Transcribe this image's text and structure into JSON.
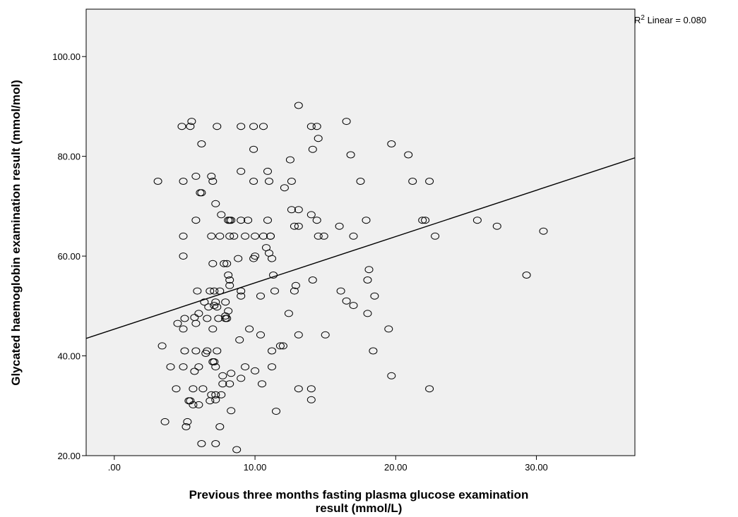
{
  "chart_data": {
    "type": "scatter",
    "xlabel_lines": [
      "Previous three months fasting plasma glucose examination",
      "result (mmol/L)"
    ],
    "ylabel": "Glycated haemoglobin examination result (mmol/mol)",
    "xlim": [
      -2.0,
      37.0
    ],
    "ylim": [
      20.0,
      109.5
    ],
    "x_ticks": [
      {
        "value": 0,
        "label": ".00"
      },
      {
        "value": 10,
        "label": "10.00"
      },
      {
        "value": 20,
        "label": "20.00"
      },
      {
        "value": 30,
        "label": "30.00"
      }
    ],
    "y_ticks": [
      {
        "value": 20,
        "label": "20.00"
      },
      {
        "value": 40,
        "label": "40.00"
      },
      {
        "value": 60,
        "label": "60.00"
      },
      {
        "value": 80,
        "label": "80.00"
      },
      {
        "value": 100,
        "label": "100.00"
      }
    ],
    "grid": false,
    "fit_line": {
      "x": [
        -2.0,
        37.0
      ],
      "y": [
        43.5,
        79.7
      ]
    },
    "annotation": {
      "base": "R",
      "sup": "2",
      "rest": " Linear = 0.080"
    },
    "colors": {
      "plot_bg": "#f0f0f0",
      "marker_stroke": "#000000",
      "line": "#000000"
    },
    "points": [
      [
        3.1,
        75
      ],
      [
        3.4,
        42
      ],
      [
        3.6,
        26.8
      ],
      [
        4.0,
        37.8
      ],
      [
        4.4,
        33.4
      ],
      [
        4.5,
        46.5
      ],
      [
        4.8,
        86
      ],
      [
        4.9,
        75
      ],
      [
        4.9,
        64
      ],
      [
        4.9,
        60
      ],
      [
        4.9,
        45.4
      ],
      [
        5.0,
        47.5
      ],
      [
        5.0,
        41
      ],
      [
        4.9,
        37.8
      ],
      [
        5.1,
        25.8
      ],
      [
        5.2,
        26.8
      ],
      [
        5.3,
        31
      ],
      [
        5.4,
        31
      ],
      [
        5.4,
        86
      ],
      [
        5.5,
        87
      ],
      [
        5.6,
        30.2
      ],
      [
        5.6,
        33.4
      ],
      [
        5.7,
        36.9
      ],
      [
        5.7,
        47.7
      ],
      [
        5.8,
        41
      ],
      [
        5.8,
        46.5
      ],
      [
        5.8,
        76
      ],
      [
        5.8,
        67.2
      ],
      [
        5.9,
        53
      ],
      [
        6.0,
        37.8
      ],
      [
        6.0,
        30.2
      ],
      [
        6.0,
        48.5
      ],
      [
        6.1,
        72.7
      ],
      [
        6.2,
        72.7
      ],
      [
        6.2,
        82.5
      ],
      [
        6.2,
        22.4
      ],
      [
        6.3,
        33.4
      ],
      [
        6.4,
        50.8
      ],
      [
        6.5,
        40.5
      ],
      [
        6.6,
        47.5
      ],
      [
        6.6,
        41
      ],
      [
        6.7,
        49.8
      ],
      [
        6.8,
        31
      ],
      [
        6.8,
        53
      ],
      [
        6.9,
        76
      ],
      [
        6.9,
        64
      ],
      [
        6.9,
        32.2
      ],
      [
        7.0,
        75
      ],
      [
        7.0,
        58.5
      ],
      [
        7.0,
        45.4
      ],
      [
        7.0,
        38.8
      ],
      [
        7.1,
        38.8
      ],
      [
        7.1,
        50.1
      ],
      [
        7.1,
        53
      ],
      [
        7.2,
        70.5
      ],
      [
        7.2,
        50.8
      ],
      [
        7.2,
        37.8
      ],
      [
        7.2,
        32.2
      ],
      [
        7.2,
        31.2
      ],
      [
        7.2,
        22.4
      ],
      [
        7.3,
        86
      ],
      [
        7.3,
        49.8
      ],
      [
        7.3,
        41
      ],
      [
        7.4,
        47.5
      ],
      [
        7.5,
        53
      ],
      [
        7.5,
        64
      ],
      [
        7.5,
        25.8
      ],
      [
        7.6,
        68.3
      ],
      [
        7.6,
        32.2
      ],
      [
        7.7,
        36
      ],
      [
        7.7,
        34.4
      ],
      [
        7.8,
        58.5
      ],
      [
        7.9,
        47.5
      ],
      [
        7.9,
        48
      ],
      [
        7.9,
        50.8
      ],
      [
        8.0,
        58.5
      ],
      [
        8.0,
        47.5
      ],
      [
        8.1,
        67.2
      ],
      [
        8.1,
        49
      ],
      [
        8.1,
        56.2
      ],
      [
        8.2,
        67.2
      ],
      [
        8.2,
        54.1
      ],
      [
        8.2,
        55.2
      ],
      [
        8.2,
        34.4
      ],
      [
        8.2,
        64
      ],
      [
        8.3,
        67.2
      ],
      [
        8.3,
        36.5
      ],
      [
        8.3,
        29
      ],
      [
        8.5,
        64
      ],
      [
        8.7,
        21.2
      ],
      [
        8.8,
        59.5
      ],
      [
        8.9,
        43.2
      ],
      [
        9.0,
        86
      ],
      [
        9.0,
        77
      ],
      [
        9.0,
        67.2
      ],
      [
        9.0,
        53
      ],
      [
        9.0,
        52
      ],
      [
        9.0,
        35.5
      ],
      [
        9.3,
        64
      ],
      [
        9.3,
        37.8
      ],
      [
        9.5,
        67.2
      ],
      [
        9.6,
        45.4
      ],
      [
        9.9,
        81.4
      ],
      [
        9.9,
        86
      ],
      [
        9.9,
        75
      ],
      [
        9.9,
        59.5
      ],
      [
        10.0,
        64
      ],
      [
        10.0,
        37
      ],
      [
        10.0,
        60
      ],
      [
        10.4,
        44.2
      ],
      [
        10.4,
        52
      ],
      [
        10.5,
        34.4
      ],
      [
        10.6,
        86
      ],
      [
        10.6,
        64
      ],
      [
        10.8,
        61.7
      ],
      [
        10.9,
        77
      ],
      [
        10.9,
        67.2
      ],
      [
        11.0,
        60.6
      ],
      [
        11.0,
        75
      ],
      [
        11.1,
        64
      ],
      [
        11.1,
        64
      ],
      [
        11.2,
        59.5
      ],
      [
        11.2,
        37.8
      ],
      [
        11.2,
        41
      ],
      [
        11.3,
        56.2
      ],
      [
        11.4,
        53
      ],
      [
        11.5,
        28.9
      ],
      [
        11.8,
        42
      ],
      [
        12.0,
        42
      ],
      [
        12.1,
        73.7
      ],
      [
        12.4,
        48.5
      ],
      [
        12.5,
        79.3
      ],
      [
        12.6,
        75
      ],
      [
        12.6,
        69.3
      ],
      [
        12.8,
        66
      ],
      [
        12.8,
        53
      ],
      [
        12.9,
        54.1
      ],
      [
        13.1,
        69.3
      ],
      [
        13.1,
        44.2
      ],
      [
        13.1,
        33.4
      ],
      [
        13.1,
        66
      ],
      [
        13.1,
        90.2
      ],
      [
        14.0,
        86
      ],
      [
        14.0,
        68.3
      ],
      [
        14.1,
        81.4
      ],
      [
        14.1,
        55.2
      ],
      [
        14.0,
        33.4
      ],
      [
        14.0,
        31.2
      ],
      [
        14.4,
        86
      ],
      [
        14.4,
        67.2
      ],
      [
        14.5,
        83.6
      ],
      [
        14.5,
        64
      ],
      [
        14.9,
        64
      ],
      [
        15.0,
        44.2
      ],
      [
        16.0,
        66
      ],
      [
        16.1,
        53
      ],
      [
        16.5,
        87
      ],
      [
        16.5,
        51
      ],
      [
        16.8,
        80.3
      ],
      [
        17.0,
        64
      ],
      [
        17.0,
        50.1
      ],
      [
        17.5,
        75
      ],
      [
        17.9,
        67.2
      ],
      [
        18.0,
        48.5
      ],
      [
        18.0,
        55.2
      ],
      [
        18.1,
        57.3
      ],
      [
        18.4,
        41
      ],
      [
        18.5,
        52
      ],
      [
        19.5,
        45.4
      ],
      [
        19.7,
        82.5
      ],
      [
        19.7,
        36
      ],
      [
        20.9,
        80.3
      ],
      [
        21.2,
        75
      ],
      [
        21.9,
        67.2
      ],
      [
        22.1,
        67.2
      ],
      [
        22.4,
        75
      ],
      [
        22.4,
        33.4
      ],
      [
        22.8,
        64
      ],
      [
        25.8,
        67.2
      ],
      [
        27.2,
        66
      ],
      [
        29.3,
        56.2
      ],
      [
        30.5,
        65
      ]
    ]
  }
}
